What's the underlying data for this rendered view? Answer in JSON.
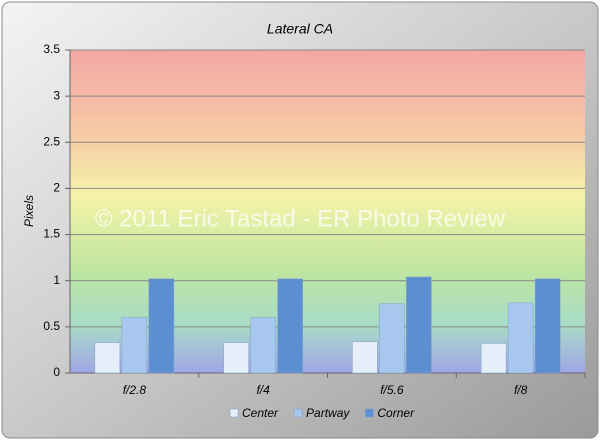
{
  "chart_data": {
    "type": "bar",
    "title": "Lateral CA",
    "y_label": "Pixels",
    "watermark": "© 2011 Eric Tastad - ER Photo Review",
    "categories": [
      "f/2.8",
      "f/4",
      "f/5.6",
      "f/8"
    ],
    "series": [
      {
        "name": "Center",
        "color": "#e6eefa",
        "values": [
          0.33,
          0.33,
          0.34,
          0.32
        ]
      },
      {
        "name": "Partway",
        "color": "#a8c7ee",
        "values": [
          0.6,
          0.6,
          0.75,
          0.76
        ]
      },
      {
        "name": "Corner",
        "color": "#5c8fd1",
        "values": [
          1.02,
          1.02,
          1.04,
          1.02
        ]
      }
    ],
    "ylim": [
      0,
      3.5
    ],
    "yticks": [
      0,
      0.5,
      1,
      1.5,
      2,
      2.5,
      3,
      3.5
    ],
    "grid": true,
    "legend": "bottom"
  }
}
